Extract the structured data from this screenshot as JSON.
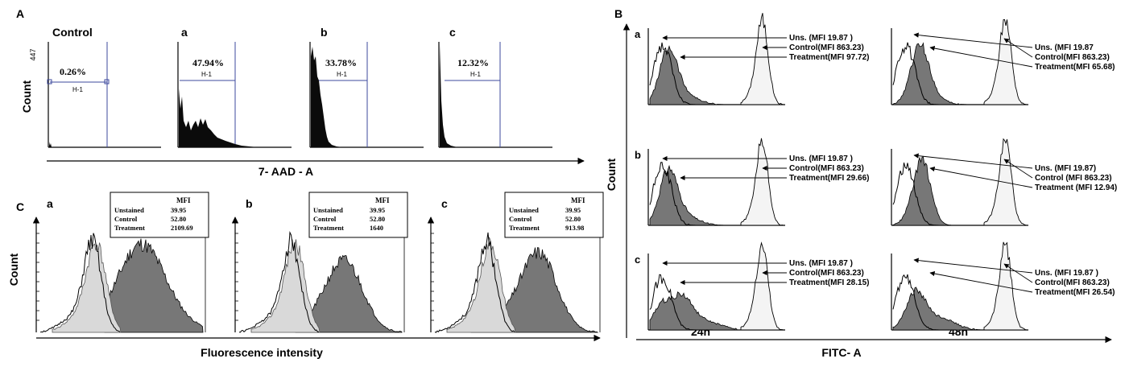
{
  "panelA": {
    "letter": "A",
    "ylabel": "Count",
    "xlabel": "7- AAD - A",
    "ymax_label": "447",
    "gate_label": "H-1",
    "subplots": [
      {
        "title": "Control",
        "percent": "0.26%"
      },
      {
        "title": "a",
        "percent": "47.94%"
      },
      {
        "title": "b",
        "percent": "33.78%"
      },
      {
        "title": "c",
        "percent": "12.32%"
      }
    ]
  },
  "panelB": {
    "letter": "B",
    "ylabel": "Count",
    "xlabel": "FITC- A",
    "col_labels": [
      "24h",
      "48h"
    ],
    "rows": [
      {
        "letter": "a",
        "cells": [
          {
            "uns": "Uns. (MFI 19.87 )",
            "control": "Control(MFI  863.23)",
            "treatment": "Treatment(MFI 97.72)"
          },
          {
            "uns": "Uns. (MFI 19.87",
            "control": "Control(MFI  863.23)",
            "treatment": "Treatment(MFI 65.68)"
          }
        ]
      },
      {
        "letter": "b",
        "cells": [
          {
            "uns": "Uns. (MFI 19.87 )",
            "control": "Control(MFI  863.23)",
            "treatment": "Treatment(MFI 29.66)"
          },
          {
            "uns": "Uns. (MFI 19.87)",
            "control": "Control (MFI 863.23)",
            "treatment": "Treatment (MFI 12.94)"
          }
        ]
      },
      {
        "letter": "c",
        "cells": [
          {
            "uns": "Uns. (MFI 19.87 )",
            "control": "Control(MFI  863.23)",
            "treatment": "Treatment(MFI 28.15)"
          },
          {
            "uns": "Uns. (MFI 19.87 )",
            "control": "Control(MFI  863.23)",
            "treatment": "Treatment(MFI 26.54)"
          }
        ]
      }
    ]
  },
  "panelC": {
    "letter": "C",
    "ylabel": "Count",
    "xlabel": "Fluorescence intensity",
    "mfi_header": "MFI",
    "row_labels": [
      "Unstained",
      "Control",
      "Treatment"
    ],
    "subplots": [
      {
        "title": "a",
        "values": [
          "39.95",
          "52.80",
          "2109.69"
        ]
      },
      {
        "title": "b",
        "values": [
          "39.95",
          "52.80",
          "1640"
        ]
      },
      {
        "title": "c",
        "values": [
          "39.95",
          "52.80",
          "913.98"
        ]
      }
    ]
  },
  "chart_data": [
    {
      "type": "histogram",
      "panel": "A",
      "series": [
        {
          "name": "Control",
          "gated_percent": 0.26
        },
        {
          "name": "a",
          "gated_percent": 47.94
        },
        {
          "name": "b",
          "gated_percent": 33.78
        },
        {
          "name": "c",
          "gated_percent": 12.32
        }
      ]
    },
    {
      "type": "histogram",
      "panel": "B",
      "series": [
        {
          "name": "a 24h",
          "mfi": {
            "Uns.": 19.87,
            "Control": 863.23,
            "Treatment": 97.72
          }
        },
        {
          "name": "a 48h",
          "mfi": {
            "Uns.": 19.87,
            "Control": 863.23,
            "Treatment": 65.68
          }
        },
        {
          "name": "b 24h",
          "mfi": {
            "Uns.": 19.87,
            "Control": 863.23,
            "Treatment": 29.66
          }
        },
        {
          "name": "b 48h",
          "mfi": {
            "Uns.": 19.87,
            "Control": 863.23,
            "Treatment": 12.94
          }
        },
        {
          "name": "c 24h",
          "mfi": {
            "Uns.": 19.87,
            "Control": 863.23,
            "Treatment": 28.15
          }
        },
        {
          "name": "c 48h",
          "mfi": {
            "Uns.": 19.87,
            "Control": 863.23,
            "Treatment": 26.54
          }
        }
      ]
    },
    {
      "type": "histogram",
      "panel": "C",
      "series": [
        {
          "name": "a",
          "mfi": {
            "Unstained": 39.95,
            "Control": 52.8,
            "Treatment": 2109.69
          }
        },
        {
          "name": "b",
          "mfi": {
            "Unstained": 39.95,
            "Control": 52.8,
            "Treatment": 1640
          }
        },
        {
          "name": "c",
          "mfi": {
            "Unstained": 39.95,
            "Control": 52.8,
            "Treatment": 913.98
          }
        }
      ]
    }
  ],
  "colors": {
    "gate": "#3d4a9e",
    "fill_dark": "#777777",
    "fill_light": "#d9d9d9",
    "fill_white": "#f4f4f4",
    "fill_black": "#0b0b0b"
  }
}
